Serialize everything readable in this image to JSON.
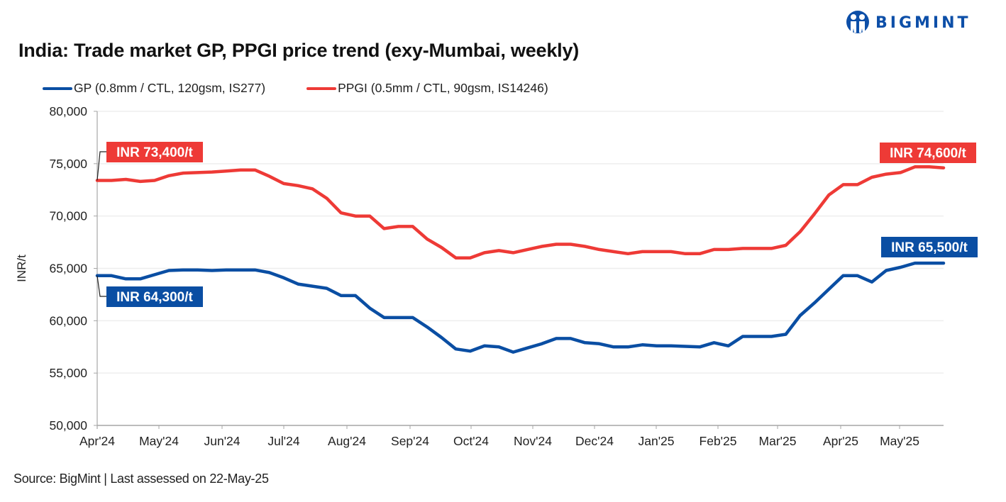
{
  "brand": {
    "name": "BIGMINT",
    "color": "#0d4fa8"
  },
  "title": "India: Trade market GP, PPGI price trend (exy-Mumbai, weekly)",
  "source": "Source: BigMint | Last assessed on 22-May-25",
  "colors": {
    "gp": "#0a4ea3",
    "ppgi": "#ee3a36",
    "grid": "#eeeeee",
    "axis": "#a6a6a6"
  },
  "chart_data": {
    "type": "line",
    "title": "India: Trade market GP, PPGI price trend (exy-Mumbai, weekly)",
    "xlabel": "",
    "ylabel": "INR/t",
    "ylim": [
      50000,
      80000
    ],
    "yticks": [
      50000,
      55000,
      60000,
      65000,
      70000,
      75000,
      80000
    ],
    "ytick_labels": [
      "50,000",
      "55,000",
      "60,000",
      "65,000",
      "70,000",
      "75,000",
      "80,000"
    ],
    "xtick_labels": [
      "Apr'24",
      "May'24",
      "Jun'24",
      "Jul'24",
      "Aug'24",
      "Sep'24",
      "Oct'24",
      "Nov'24",
      "Dec'24",
      "Jan'25",
      "Feb'25",
      "Mar'25",
      "Apr'25",
      "May'25"
    ],
    "grid": true,
    "legend_position": "top-left",
    "series": [
      {
        "name": "GP (0.8mm / CTL, 120gsm, IS277)",
        "color": "#0a4ea3",
        "values": [
          64300,
          64300,
          64000,
          64000,
          64400,
          64800,
          64850,
          64850,
          64800,
          64850,
          64850,
          64850,
          64600,
          64100,
          63500,
          63300,
          63100,
          62400,
          62400,
          61200,
          60300,
          60300,
          60300,
          59400,
          58400,
          57300,
          57100,
          57600,
          57500,
          57000,
          57400,
          57800,
          58300,
          58300,
          57900,
          57800,
          57500,
          57500,
          57700,
          57600,
          57600,
          57550,
          57500,
          57900,
          57600,
          58500,
          58500,
          58500,
          58700,
          60500,
          61700,
          63000,
          64300,
          64300,
          63700,
          64800,
          65100,
          65500,
          65500,
          65500
        ],
        "callouts": [
          {
            "label": "INR 64,300/t",
            "value": 64300,
            "at": "start"
          },
          {
            "label": "INR 65,500/t",
            "value": 65500,
            "at": "end"
          }
        ]
      },
      {
        "name": "PPGI (0.5mm / CTL, 90gsm, IS14246)",
        "color": "#ee3a36",
        "values": [
          73400,
          73400,
          73500,
          73300,
          73400,
          73850,
          74100,
          74150,
          74200,
          74300,
          74400,
          74400,
          73800,
          73100,
          72900,
          72600,
          71700,
          70300,
          70000,
          70000,
          68800,
          69000,
          69000,
          67800,
          67000,
          66000,
          66000,
          66500,
          66700,
          66500,
          66800,
          67100,
          67300,
          67300,
          67100,
          66800,
          66600,
          66400,
          66600,
          66600,
          66600,
          66400,
          66400,
          66800,
          66800,
          66900,
          66900,
          66900,
          67200,
          68500,
          70200,
          72000,
          73000,
          73000,
          73700,
          74000,
          74150,
          74700,
          74700,
          74600
        ],
        "callouts": [
          {
            "label": "INR 73,400/t",
            "value": 73400,
            "at": "start"
          },
          {
            "label": "INR 74,600/t",
            "value": 74600,
            "at": "end"
          }
        ]
      }
    ]
  }
}
